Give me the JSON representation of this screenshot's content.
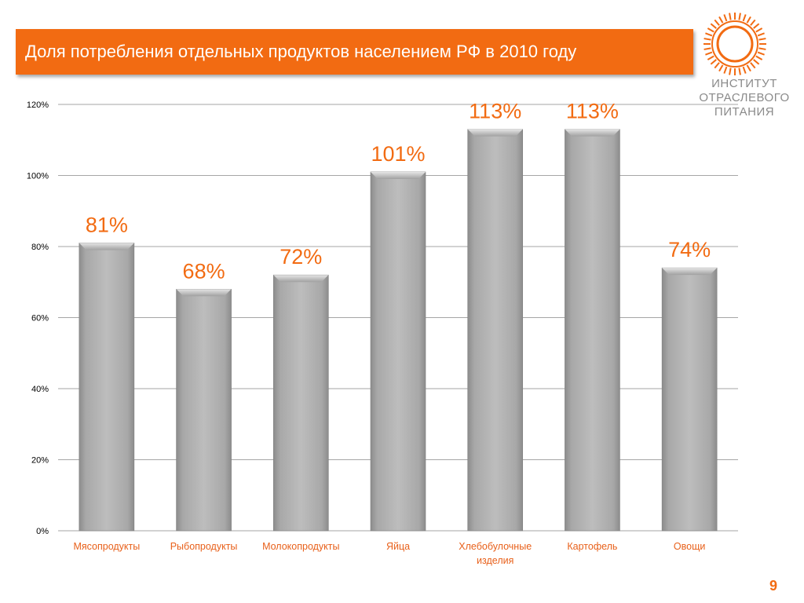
{
  "header": {
    "title": "Доля потребления отдельных продуктов населением РФ в 2010 году"
  },
  "logo": {
    "lines": [
      "ИНСТИТУТ",
      "ОТРАСЛЕВОГО",
      "ПИТАНИЯ"
    ],
    "icon": "sun-ring-logo-icon"
  },
  "page": {
    "number": "9"
  },
  "colors": {
    "accent": "#f26b12",
    "bar": "#a9a9a9",
    "grid": "#a6a6a6",
    "axis_text": "#000000",
    "category_text": "#e8601a",
    "data_label": "#f26b12"
  },
  "chart_data": {
    "type": "bar",
    "categories": [
      "Мясопродукты",
      "Рыбопродукты",
      "Молокопродукты",
      "Яйца",
      "Хлебобулочные изделия",
      "Картофель",
      "Овощи"
    ],
    "values": [
      81,
      68,
      72,
      101,
      113,
      113,
      74
    ],
    "data_labels": [
      "81%",
      "68%",
      "72%",
      "101%",
      "113%",
      "113%",
      "74%"
    ],
    "ylim": [
      0,
      120
    ],
    "yticks": [
      0,
      20,
      40,
      60,
      80,
      100,
      120
    ],
    "ytick_labels": [
      "0%",
      "20%",
      "40%",
      "60%",
      "80%",
      "100%",
      "120%"
    ],
    "grid": true,
    "title": "",
    "xlabel": "",
    "ylabel": ""
  }
}
